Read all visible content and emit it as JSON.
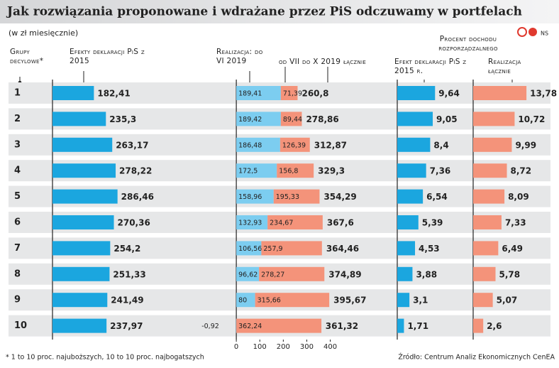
{
  "title": "Jak rozwiązania proponowane i wdrażane przez PiS odczuwamy w portfelach",
  "subtitle": "(w zł miesięcznie)",
  "credit": "NS",
  "note": "* 1 to 10 proc. najuboższych, 10 to 10 proc. najbogatszych",
  "source": "Źródło: Centrum Analiz Ekonomicznych CenEA",
  "chart_data": [
    {
      "type": "bar",
      "category_label": "Grupy decylowe*",
      "categories": [
        "1",
        "2",
        "3",
        "4",
        "5",
        "6",
        "7",
        "8",
        "9",
        "10"
      ],
      "series": [
        {
          "name": "Efekty deklaracji PiS z 2015",
          "color": "#1ba6df",
          "values": [
            182.41,
            235.3,
            263.17,
            278.22,
            286.46,
            270.36,
            254.2,
            251.33,
            241.49,
            237.97
          ],
          "value_labels": [
            "182,41",
            "235,3",
            "263,17",
            "278,22",
            "286,46",
            "270,36",
            "254,2",
            "251,33",
            "241,49",
            "237,97"
          ]
        }
      ],
      "xlim": [
        0,
        800
      ]
    },
    {
      "type": "stacked_bar",
      "series": [
        {
          "name": "Realizacja: do VI 2019",
          "color": "#7ccdf0",
          "values": [
            189.41,
            189.42,
            186.48,
            172.5,
            158.96,
            132.93,
            106.56,
            96.62,
            80,
            -0.92
          ],
          "value_labels": [
            "189,41",
            "189,42",
            "186,48",
            "172,5",
            "158,96",
            "132,93",
            "106,56",
            "96,62",
            "80",
            "-0,92"
          ]
        },
        {
          "name": "od VII do X 2019",
          "color": "#f4937a",
          "values": [
            71.39,
            89.44,
            126.39,
            156.8,
            195.33,
            234.67,
            257.9,
            278.27,
            315.66,
            362.24
          ],
          "value_labels": [
            "71,39",
            "89,44",
            "126,39",
            "156,8",
            "195,33",
            "234,67",
            "257,9",
            "278,27",
            "315,66",
            "362,24"
          ]
        }
      ],
      "totals": {
        "name": "łącznie",
        "values": [
          260.8,
          278.86,
          312.87,
          329.3,
          354.29,
          367.6,
          364.46,
          374.89,
          395.67,
          361.32
        ],
        "value_labels": [
          "260,8",
          "278,86",
          "312,87",
          "329,3",
          "354,29",
          "367,6",
          "364,46",
          "374,89",
          "395,67",
          "361,32"
        ]
      },
      "xlim": [
        -100,
        670
      ],
      "xticks": [
        0,
        100,
        200,
        300,
        400
      ]
    },
    {
      "type": "bar",
      "title": "Procent dochodu rozporządzalnego",
      "series": [
        {
          "name": "Efekt deklaracji PiS z 2015 r.",
          "color": "#1ba6df",
          "values": [
            9.64,
            9.05,
            8.4,
            7.36,
            6.54,
            5.39,
            4.53,
            3.88,
            3.1,
            1.71
          ],
          "value_labels": [
            "9,64",
            "9,05",
            "8,4",
            "7,36",
            "6,54",
            "5,39",
            "4,53",
            "3,88",
            "3,1",
            "1,71"
          ]
        }
      ],
      "xlim": [
        0,
        19
      ]
    },
    {
      "type": "bar",
      "series": [
        {
          "name": "Realizacja łącznie",
          "color": "#f4937a",
          "values": [
            13.78,
            10.72,
            9.99,
            8.72,
            8.09,
            7.33,
            6.49,
            5.78,
            5.07,
            2.6
          ],
          "value_labels": [
            "13,78",
            "10,72",
            "9,99",
            "8,72",
            "8,09",
            "7,33",
            "6,49",
            "5,78",
            "5,07",
            "2,6"
          ]
        }
      ],
      "xlim": [
        0,
        20
      ]
    }
  ]
}
